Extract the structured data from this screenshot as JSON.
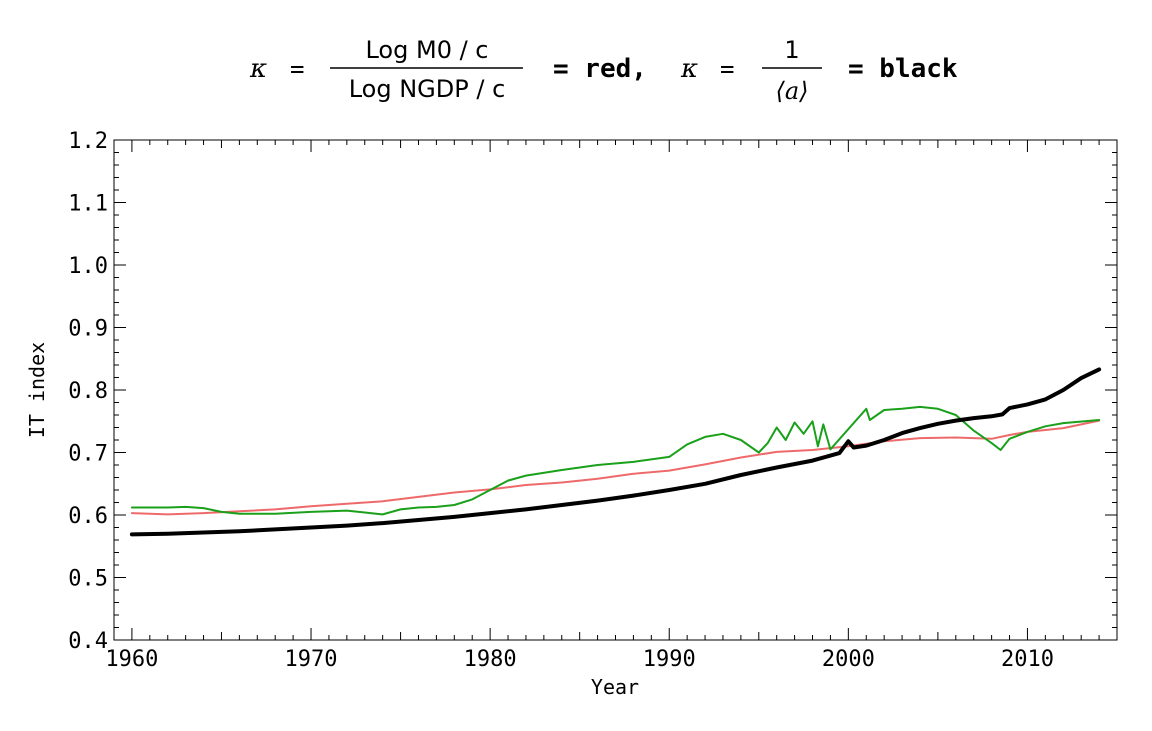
{
  "chart_data": {
    "type": "line",
    "title": {
      "kappa_symbol": "κ",
      "eq": "=",
      "frac1_num": "Log M0 / c",
      "frac1_den": "Log NGDP / c",
      "label_red": "= red,",
      "frac2_num": "1",
      "frac2_den": "⟨a⟩",
      "label_black": "= black"
    },
    "xlabel": "Year",
    "ylabel": "IT index",
    "xlim": [
      1959,
      2015
    ],
    "ylim": [
      0.4,
      1.2
    ],
    "x_ticks": [
      1960,
      1970,
      1980,
      1990,
      2000,
      2010
    ],
    "y_ticks": [
      "0.4",
      "0.5",
      "0.6",
      "0.7",
      "0.8",
      "0.9",
      "1.0",
      "1.1",
      "1.2"
    ],
    "grid": false,
    "colors": {
      "black": "#000000",
      "red": "#ee6a6a",
      "green": "#1aa01a"
    },
    "series": [
      {
        "color": "black",
        "x": [
          1960,
          1962,
          1964,
          1966,
          1968,
          1970,
          1972,
          1974,
          1976,
          1978,
          1980,
          1982,
          1984,
          1986,
          1988,
          1990,
          1992,
          1994,
          1996,
          1998,
          1999.5,
          2000,
          2000.3,
          2001,
          2002,
          2003,
          2004,
          2005,
          2006,
          2007,
          2008,
          2008.6,
          2009,
          2010,
          2011,
          2012,
          2013,
          2014
        ],
        "y": [
          0.569,
          0.57,
          0.572,
          0.574,
          0.577,
          0.58,
          0.583,
          0.587,
          0.592,
          0.597,
          0.603,
          0.609,
          0.616,
          0.623,
          0.631,
          0.64,
          0.65,
          0.664,
          0.676,
          0.687,
          0.699,
          0.718,
          0.708,
          0.711,
          0.72,
          0.731,
          0.739,
          0.746,
          0.751,
          0.755,
          0.758,
          0.761,
          0.771,
          0.777,
          0.785,
          0.8,
          0.819,
          0.833
        ]
      },
      {
        "color": "red",
        "x": [
          1960,
          1962,
          1964,
          1966,
          1968,
          1970,
          1972,
          1974,
          1976,
          1978,
          1980,
          1982,
          1984,
          1986,
          1988,
          1990,
          1992,
          1994,
          1996,
          1998,
          2000,
          2002,
          2004,
          2006,
          2008,
          2009,
          2010,
          2012,
          2014
        ],
        "y": [
          0.603,
          0.601,
          0.603,
          0.606,
          0.609,
          0.614,
          0.618,
          0.622,
          0.629,
          0.636,
          0.641,
          0.648,
          0.652,
          0.658,
          0.666,
          0.671,
          0.681,
          0.692,
          0.701,
          0.704,
          0.71,
          0.718,
          0.723,
          0.724,
          0.722,
          0.728,
          0.733,
          0.739,
          0.751
        ]
      },
      {
        "color": "green",
        "x": [
          1960,
          1962,
          1963,
          1964,
          1965,
          1966,
          1968,
          1970,
          1972,
          1973,
          1974,
          1975,
          1976,
          1977,
          1978,
          1979,
          1980,
          1981,
          1982,
          1984,
          1986,
          1988,
          1990,
          1991,
          1992,
          1993,
          1994,
          1995,
          1995.5,
          1996,
          1996.5,
          1997,
          1997.5,
          1998,
          1998.3,
          1998.6,
          1999,
          2001,
          2001.2,
          2002,
          2003,
          2004,
          2005,
          2006,
          2007,
          2008,
          2008.5,
          2009,
          2010,
          2011,
          2012,
          2014
        ],
        "y": [
          0.612,
          0.612,
          0.613,
          0.611,
          0.605,
          0.602,
          0.602,
          0.605,
          0.607,
          0.604,
          0.601,
          0.609,
          0.612,
          0.613,
          0.616,
          0.625,
          0.64,
          0.655,
          0.663,
          0.672,
          0.68,
          0.685,
          0.693,
          0.713,
          0.725,
          0.73,
          0.72,
          0.7,
          0.715,
          0.74,
          0.72,
          0.748,
          0.73,
          0.75,
          0.71,
          0.745,
          0.705,
          0.77,
          0.752,
          0.768,
          0.77,
          0.773,
          0.77,
          0.76,
          0.735,
          0.715,
          0.704,
          0.722,
          0.733,
          0.742,
          0.747,
          0.752
        ]
      }
    ]
  }
}
